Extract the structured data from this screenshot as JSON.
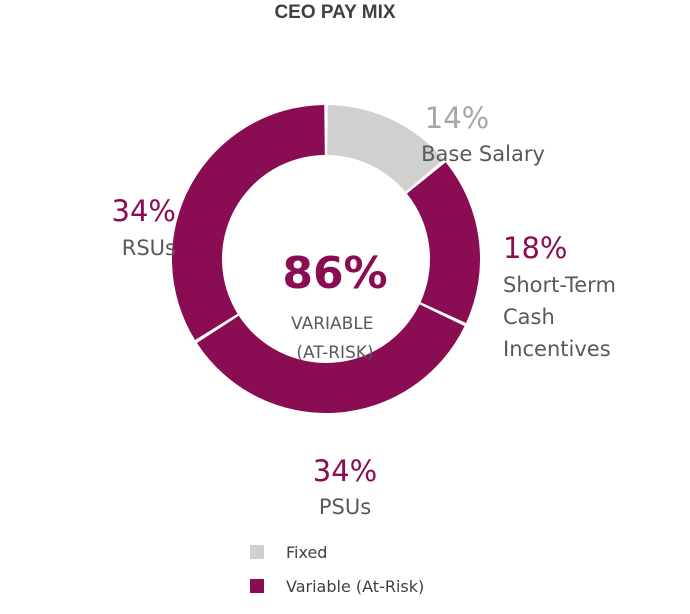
{
  "chart_data": {
    "type": "pie",
    "title": "CEO PAY MIX",
    "slices": [
      {
        "label_lines": [
          "Base Salary"
        ],
        "value": 14,
        "display": "14%",
        "group": "Fixed"
      },
      {
        "label_lines": [
          "Short-Term",
          "Cash",
          "Incentives"
        ],
        "value": 18,
        "display": "18%",
        "group": "Variable (At-Risk)"
      },
      {
        "label_lines": [
          "PSUs"
        ],
        "value": 34,
        "display": "34%",
        "group": "Variable (At-Risk)"
      },
      {
        "label_lines": [
          "RSUs"
        ],
        "value": 34,
        "display": "34%",
        "group": "Variable (At-Risk)"
      }
    ],
    "center": {
      "value": "86%",
      "label_lines": [
        "VARIABLE",
        "(AT-RISK)"
      ]
    },
    "legend": [
      {
        "label": "Fixed",
        "color": "#d0d0d0"
      },
      {
        "label": "Variable (At-Risk)",
        "color": "#8a0c52"
      }
    ]
  },
  "colors": {
    "fixed": "#d0d0d0",
    "fixed_text": "#a6a6a6",
    "variable": "#8a0c52",
    "label_text": "#595959"
  }
}
